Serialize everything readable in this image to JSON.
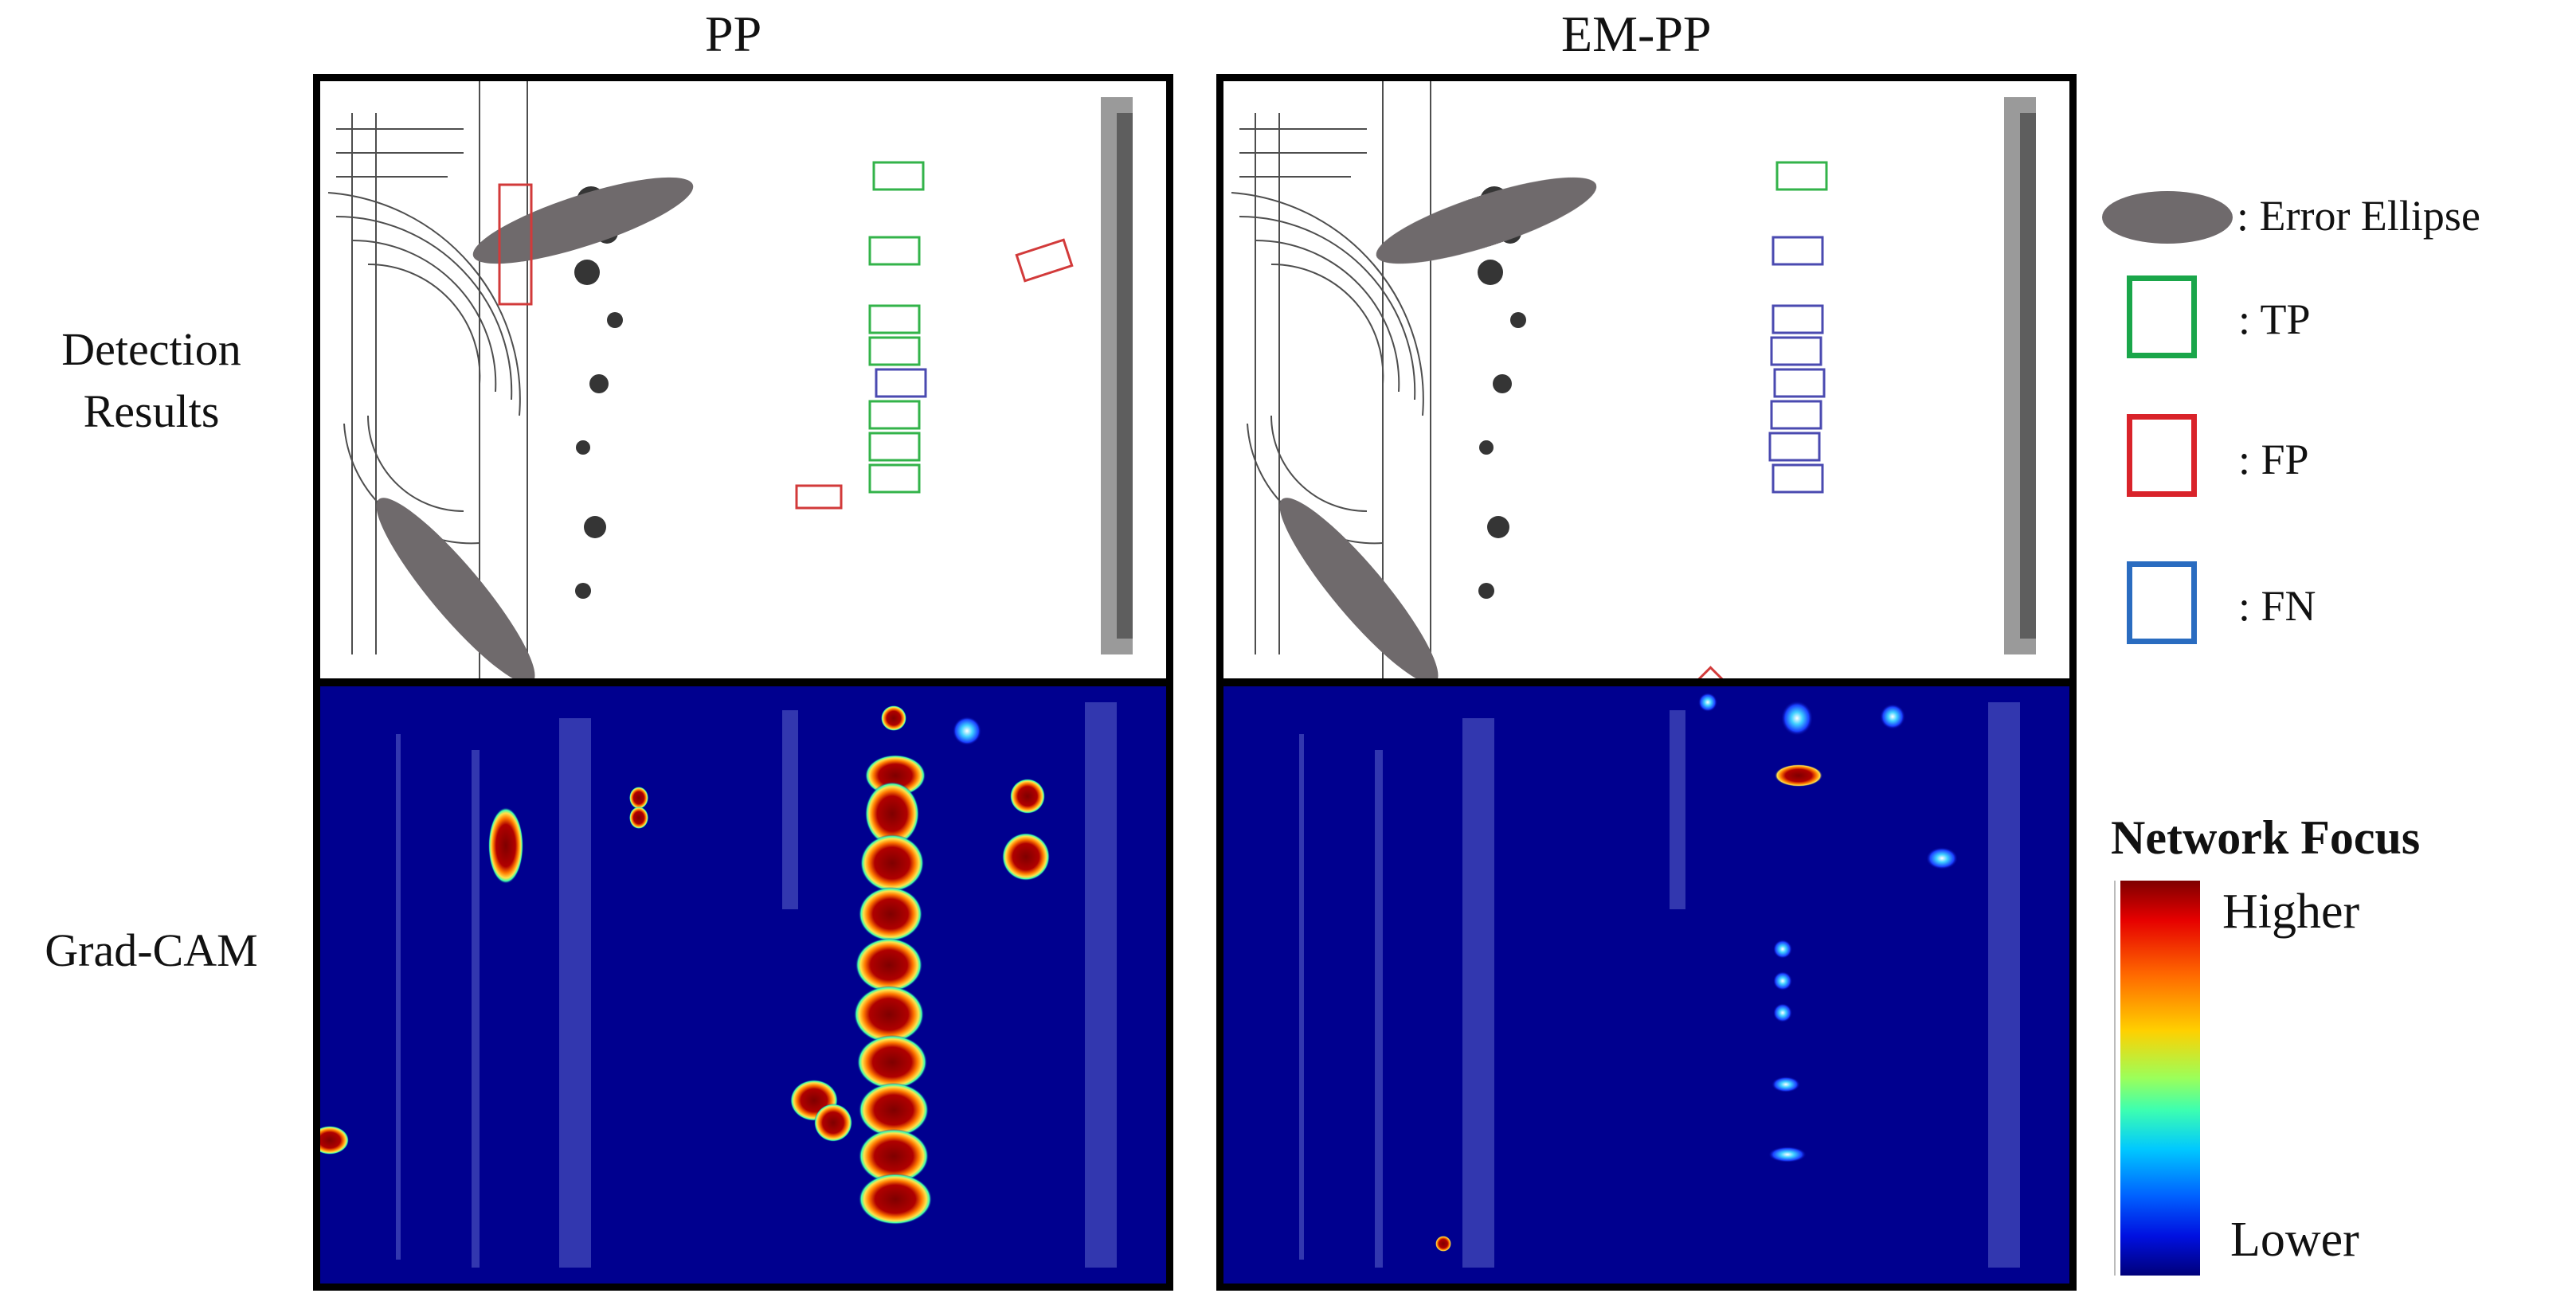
{
  "columns": {
    "left": "PP",
    "right": "EM-PP"
  },
  "rows": {
    "detection_line1": "Detection",
    "detection_line2": "Results",
    "gradcam": "Grad-CAM"
  },
  "legend": {
    "ellipse": ": Error Ellipse",
    "tp": ": TP",
    "fp": ": FP",
    "fn": ": FN",
    "colors": {
      "ellipse": "#6f6a6c",
      "tp": "#1aa64a",
      "fp": "#d9232a",
      "fn": "#2a6cc0"
    }
  },
  "colorbar": {
    "title": "Network Focus",
    "higher": "Higher",
    "lower": "Lower"
  },
  "colors": {
    "heat_background": "#00008f",
    "box_tp": "#33b34a",
    "box_fp": "#d23a3a",
    "box_fn": "#4a4ab0"
  }
}
